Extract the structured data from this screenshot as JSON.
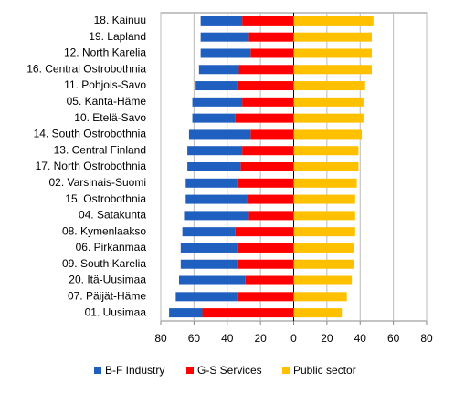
{
  "chart_data": {
    "type": "diverging-bar",
    "categories": [
      "18. Kainuu",
      "19. Lapland",
      "12. North Karelia",
      "16. Central Ostrobothnia",
      "11. Pohjois-Savo",
      "05. Kanta-Häme",
      "10. Etelä-Savo",
      "14. South Ostrobothnia",
      "13. Central Finland",
      "17. North Ostrobothnia",
      "02. Varsinais-Suomi",
      "15. Ostrobothnia",
      "04. Satakunta",
      "08. Kymenlaakso",
      "06. Pirkanmaa",
      "09. South Karelia",
      "20. Itä-Uusimaa",
      "07. Päijät-Häme",
      "01. Uusimaa"
    ],
    "series": [
      {
        "name": "B-F Industry",
        "color": "#1f5fbf",
        "values": [
          -25,
          -29,
          -30,
          -24,
          -25,
          -30,
          -26,
          -37,
          -33,
          -32,
          -31,
          -37,
          -39,
          -32,
          -34,
          -34,
          -40,
          -37,
          -20
        ]
      },
      {
        "name": "G-S Services",
        "color": "#ff0000",
        "values": [
          -31,
          -27,
          -26,
          -33,
          -34,
          -31,
          -35,
          -26,
          -31,
          -32,
          -34,
          -28,
          -27,
          -35,
          -34,
          -34,
          -29,
          -34,
          -55
        ]
      },
      {
        "name": "Public sector",
        "color": "#ffc000",
        "values": [
          48,
          47,
          47,
          47,
          43,
          42,
          42,
          41,
          39,
          39,
          38,
          37,
          37,
          37,
          36,
          36,
          35,
          32,
          29
        ]
      }
    ],
    "xlim": [
      -80,
      80
    ],
    "xticks": [
      {
        "value": -80,
        "label": "80"
      },
      {
        "value": -60,
        "label": "60"
      },
      {
        "value": -40,
        "label": "40"
      },
      {
        "value": -20,
        "label": "20"
      },
      0,
      20,
      40,
      60,
      80
    ],
    "grid": true,
    "legend": "bottom"
  }
}
